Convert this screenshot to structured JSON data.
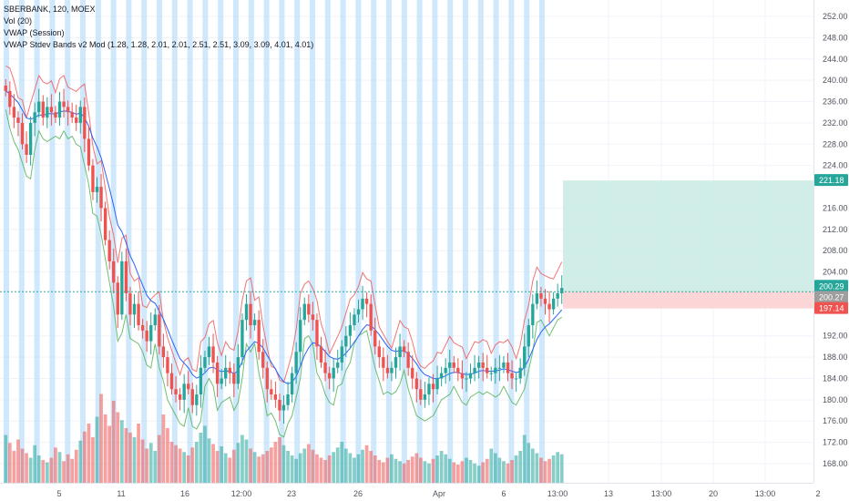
{
  "chart_data": {
    "type": "candlestick",
    "title": "SBERBANK, 120, MOEX",
    "indicators": [
      "Vol (20)",
      "VWAP (Session)",
      "VWAP Stdev Bands v2 Mod (1.28, 1.28, 2.01, 2.01, 2.51, 2.51, 3.09, 3.09, 4.01, 4.01)"
    ],
    "y_axis": {
      "ylim": [
        166,
        254
      ],
      "ticks": [
        252,
        248,
        244,
        240,
        236,
        232,
        228,
        224,
        216,
        212,
        208,
        204,
        192,
        188,
        184,
        180,
        176,
        172,
        168
      ],
      "tick_labels": [
        "252.00",
        "248.00",
        "244.00",
        "240.00",
        "236.00",
        "232.00",
        "228.00",
        "224.00",
        "216.00",
        "212.00",
        "208.00",
        "204.00",
        "192.00",
        "188.00",
        "184.00",
        "180.00",
        "176.00",
        "172.00",
        "168.00"
      ],
      "position": "right"
    },
    "x_axis": {
      "tick_labels": [
        "5",
        "11",
        "16",
        "12:00",
        "23",
        "26",
        "Apr",
        "6",
        "13:00",
        "13",
        "13:00",
        "20",
        "13:00",
        "2"
      ]
    },
    "price_labels": [
      {
        "value": 221.18,
        "text": "221.18",
        "color": "#26a69a"
      },
      {
        "value": 200.29,
        "text": "200.29",
        "color": "#26a69a"
      },
      {
        "value": 200.27,
        "text": "200.27",
        "color": "#9e9e9e"
      },
      {
        "value": 197.14,
        "text": "197.14",
        "color": "#ef5350"
      }
    ],
    "position_tool": {
      "entry": 200.29,
      "target": 221.18,
      "stop": 197.14
    },
    "colors": {
      "up": "#26a69a",
      "down": "#ef5350",
      "vwap": "#2962ff",
      "upper_band": "#ef5350",
      "lower_band": "#4caf50",
      "session_stripe": "#bbdefb",
      "target_fill": "#c8ebe3",
      "stop_fill": "#fbcfd0"
    },
    "close_series": [
      238,
      235,
      233,
      232,
      228,
      226,
      232,
      234,
      236,
      233,
      235,
      234,
      233,
      236,
      235,
      234,
      233,
      232,
      235,
      229,
      224,
      219,
      220,
      216,
      210,
      206,
      202,
      196,
      206,
      200,
      196,
      198,
      194,
      193,
      191,
      194,
      196,
      190,
      188,
      185,
      182,
      181,
      180,
      183,
      182,
      179,
      181,
      186,
      188,
      190,
      187,
      183,
      184,
      186,
      185,
      183,
      188,
      195,
      198,
      194,
      195,
      189,
      186,
      182,
      181,
      180,
      178,
      179,
      181,
      185,
      189,
      195,
      198,
      196,
      195,
      190,
      187,
      185,
      184,
      186,
      187,
      190,
      192,
      194,
      196,
      197,
      199,
      198,
      193,
      190,
      188,
      186,
      185,
      186,
      188,
      190,
      189,
      186,
      184,
      182,
      180,
      181,
      183,
      182,
      184,
      185,
      186,
      187,
      186,
      185,
      184,
      184,
      185,
      186,
      187,
      186,
      185,
      185,
      186,
      186,
      187,
      185,
      184,
      184,
      186,
      190,
      194,
      198,
      200,
      199,
      198,
      197,
      199,
      200,
      201
    ],
    "volume_levels": [
      0.42,
      0.35,
      0.28,
      0.38,
      0.3,
      0.26,
      0.22,
      0.33,
      0.24,
      0.2,
      0.18,
      0.22,
      0.31,
      0.27,
      0.19,
      0.25,
      0.21,
      0.29,
      0.37,
      0.45,
      0.52,
      0.4,
      0.58,
      0.78,
      0.6,
      0.5,
      0.72,
      0.62,
      0.55,
      0.48,
      0.44,
      0.4,
      0.52,
      0.38,
      0.3,
      0.35,
      0.28,
      0.42,
      0.6,
      0.48,
      0.36,
      0.33,
      0.3,
      0.27,
      0.24,
      0.31,
      0.36,
      0.44,
      0.5,
      0.39,
      0.34,
      0.28,
      0.32,
      0.26,
      0.22,
      0.29,
      0.35,
      0.42,
      0.38,
      0.3,
      0.27,
      0.23,
      0.25,
      0.28,
      0.31,
      0.36,
      0.4,
      0.33,
      0.28,
      0.24,
      0.21,
      0.26,
      0.3,
      0.34,
      0.29,
      0.25,
      0.22,
      0.2,
      0.24,
      0.27,
      0.31,
      0.36,
      0.3,
      0.26,
      0.22,
      0.25,
      0.29,
      0.33,
      0.28,
      0.24,
      0.2,
      0.18,
      0.22,
      0.25,
      0.21,
      0.19,
      0.17,
      0.2,
      0.23,
      0.26,
      0.22,
      0.19,
      0.17,
      0.21,
      0.24,
      0.28,
      0.25,
      0.21,
      0.18,
      0.16,
      0.19,
      0.22,
      0.2,
      0.17,
      0.15,
      0.18,
      0.21,
      0.3,
      0.26,
      0.22,
      0.19,
      0.17,
      0.2,
      0.24,
      0.28,
      0.42,
      0.35,
      0.3,
      0.26,
      0.22,
      0.19,
      0.21,
      0.24,
      0.27,
      0.25
    ]
  }
}
